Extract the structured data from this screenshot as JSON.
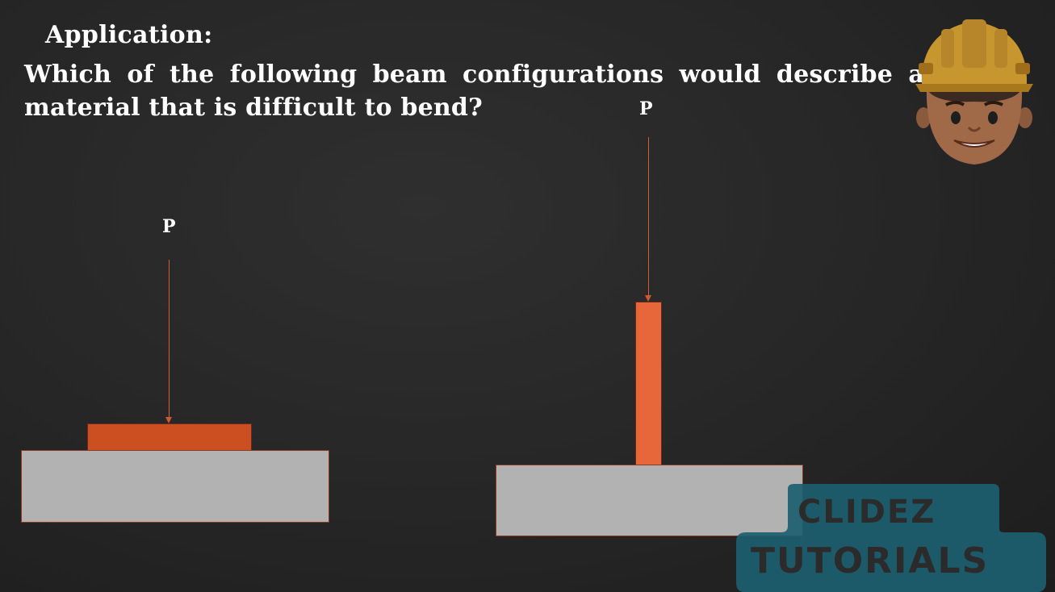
{
  "heading": "Application:",
  "question": "Which of the following beam configurations would describe a material that is difficult to bend?",
  "diagrams": {
    "left_load_label": "P",
    "right_load_label": "P"
  },
  "branding": {
    "line1": "CLIDEZ",
    "line2": "TUTORIALS"
  },
  "colors": {
    "background": "#262626",
    "beam_flat": "#cc4f22",
    "beam_tall": "#e8673a",
    "support": "#b2b2b2",
    "brand_badge": "#1d6070"
  }
}
